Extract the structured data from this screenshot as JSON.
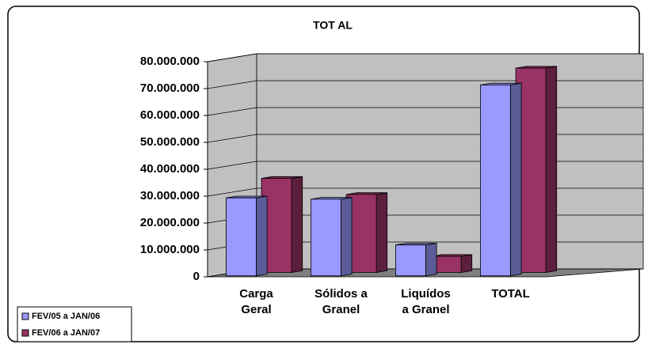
{
  "chart_data": {
    "type": "bar3d",
    "title": "TOT AL",
    "categories": [
      "Carga\nGeral",
      "Sólidos a\nGranel",
      "Liquídos\na Granel",
      "TOTAL"
    ],
    "series": [
      {
        "name": "FEV/05 a JAN/06",
        "color": "#9999ff",
        "values": [
          29000000,
          28500000,
          11500000,
          71000000
        ]
      },
      {
        "name": "FEV/06 a JAN/07",
        "color": "#993366",
        "values": [
          35000000,
          29000000,
          6000000,
          76000000
        ]
      }
    ],
    "ylim": [
      0,
      80000000
    ],
    "yticks": [
      0,
      {
        "value": 10000000,
        "label": "10.000.000"
      },
      {
        "value": 20000000,
        "label": "20.000.000"
      },
      {
        "value": 30000000,
        "label": "30.000.000"
      },
      {
        "value": 40000000,
        "label": "40.000.000"
      },
      {
        "value": 50000000,
        "label": "50.000.000"
      },
      {
        "value": 60000000,
        "label": "60.000.000"
      },
      {
        "value": 70000000,
        "label": "70.000.000"
      },
      {
        "value": 80000000,
        "label": "80.000.000"
      }
    ],
    "grid": true
  }
}
